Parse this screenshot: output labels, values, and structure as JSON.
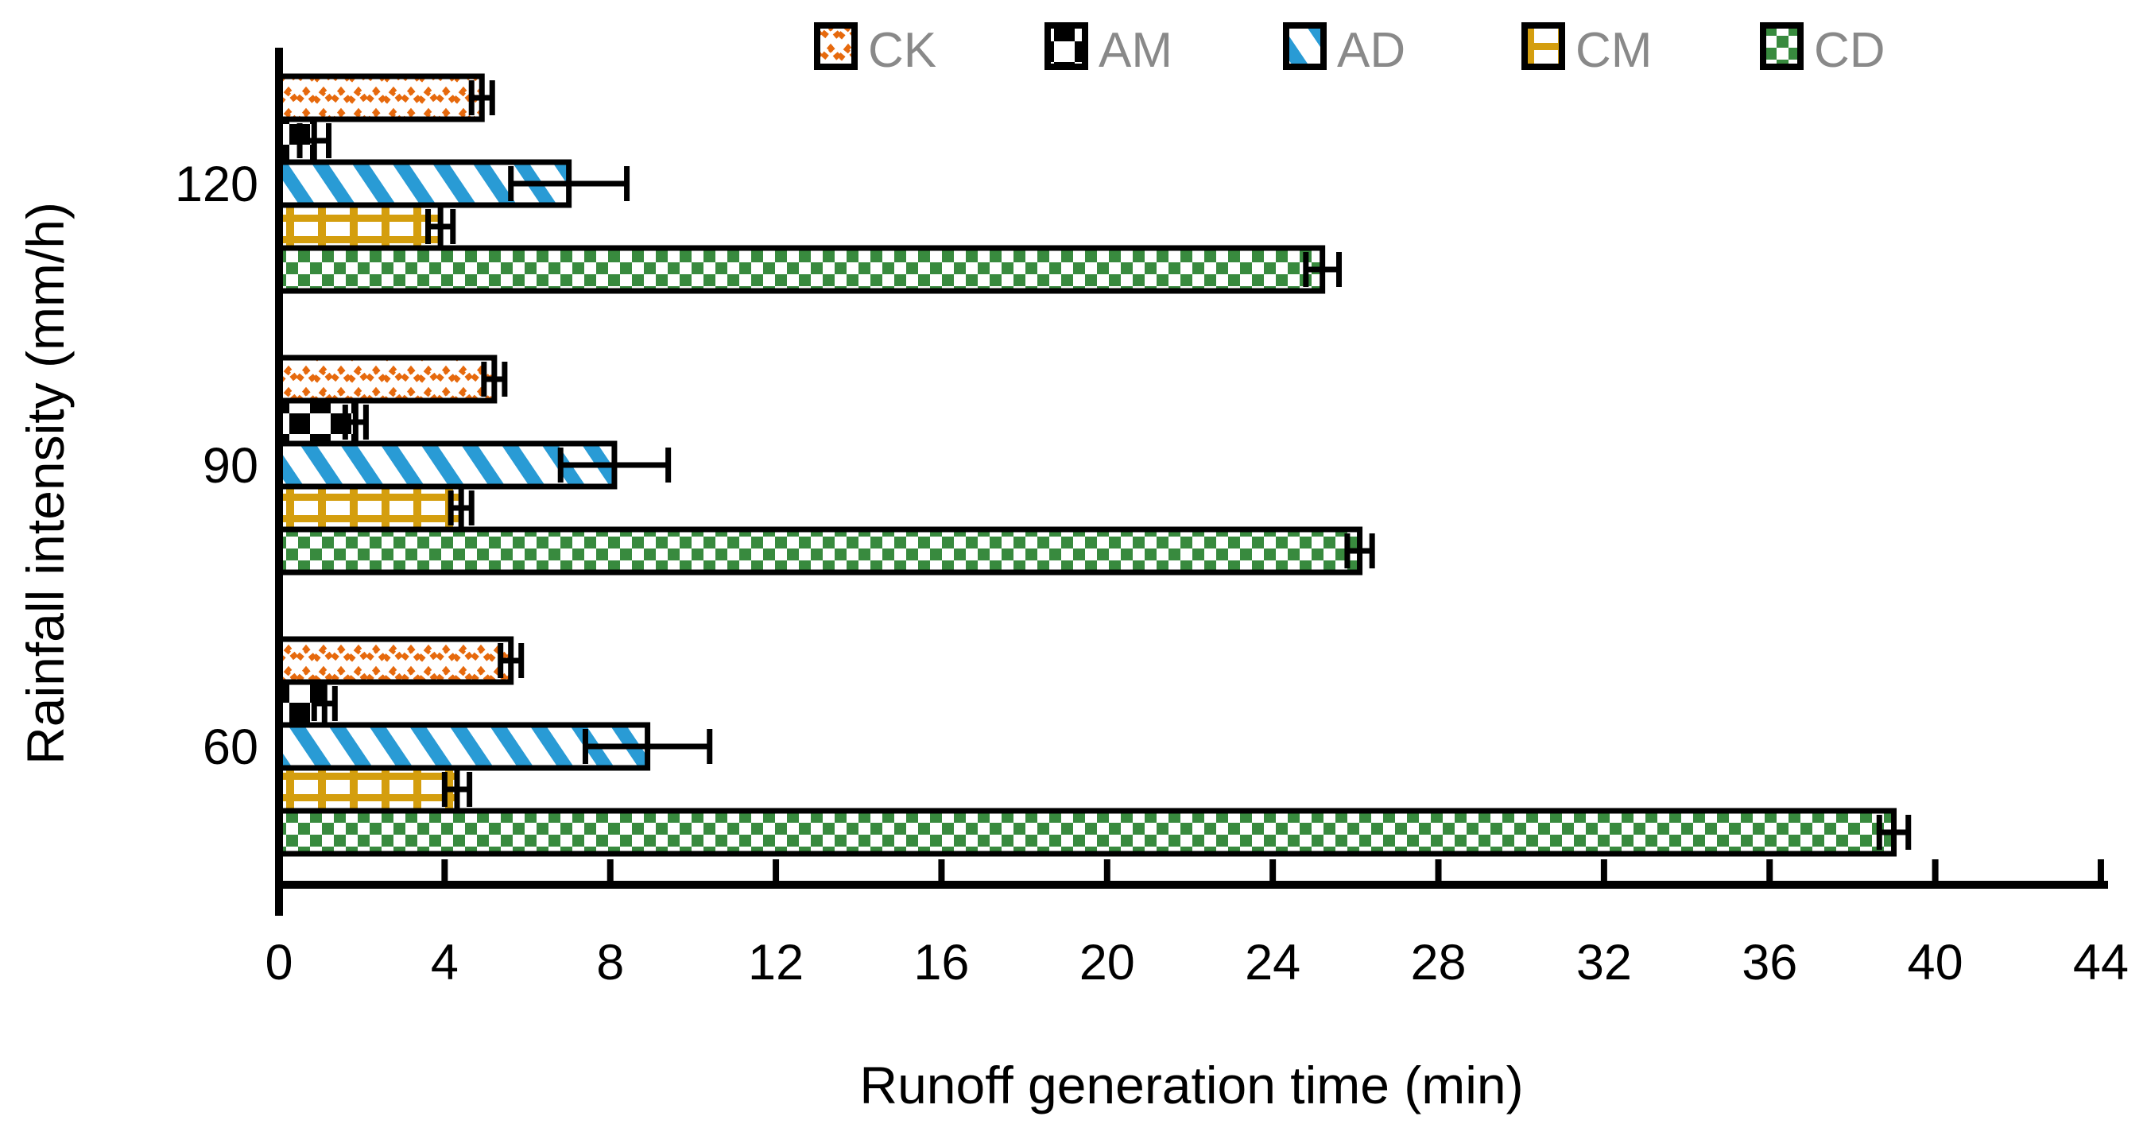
{
  "chart_data": {
    "type": "bar",
    "orientation": "horizontal",
    "title": "",
    "xlabel": "Runoff generation time (min)",
    "ylabel": "Rainfall intensity (mm/h)",
    "categories": [
      "120",
      "90",
      "60"
    ],
    "xlim": [
      0,
      44
    ],
    "x_ticks": [
      0,
      4,
      8,
      12,
      16,
      20,
      24,
      28,
      32,
      36,
      40,
      44
    ],
    "grid": "off",
    "legend_position": "top",
    "series": [
      {
        "name": "CK",
        "pattern": "orange-zigzag-dots",
        "color": "#E6690D",
        "values": [
          4.9,
          5.2,
          5.6
        ],
        "errors": [
          0.25,
          0.25,
          0.25
        ]
      },
      {
        "name": "AM",
        "pattern": "black-checkerboard",
        "color": "#000000",
        "values": [
          0.85,
          1.85,
          1.1
        ],
        "errors": [
          0.35,
          0.25,
          0.25
        ]
      },
      {
        "name": "AD",
        "pattern": "blue-diagonal-stripes",
        "color": "#299BD5",
        "values": [
          7.0,
          8.1,
          8.9
        ],
        "errors": [
          1.4,
          1.3,
          1.5
        ]
      },
      {
        "name": "CM",
        "pattern": "gold-grid",
        "color": "#D49E0E",
        "values": [
          3.9,
          4.4,
          4.3
        ],
        "errors": [
          0.3,
          0.25,
          0.3
        ]
      },
      {
        "name": "CD",
        "pattern": "green-checkerboard",
        "color": "#388A3E",
        "values": [
          25.2,
          26.1,
          39.0
        ],
        "errors": [
          0.4,
          0.3,
          0.35
        ]
      }
    ],
    "axis_color": "#000000",
    "error_bar_color": "#000000"
  }
}
